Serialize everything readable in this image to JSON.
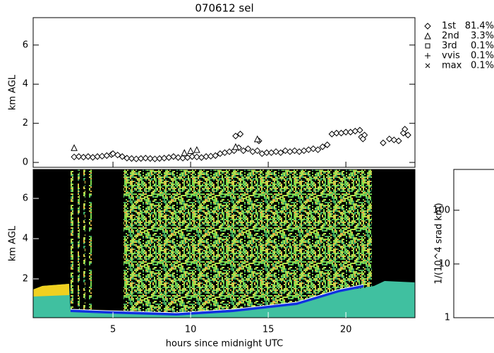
{
  "chart_data": [
    {
      "type": "scatter",
      "title": "070612 sel",
      "ylabel": "km AGL",
      "xlim": [
        -0.14,
        24.45
      ],
      "ylim": [
        -0.25,
        7.4
      ],
      "yticks": [
        0,
        2,
        4,
        6
      ],
      "series": [
        {
          "name": "1st",
          "share": "81.4%",
          "symbol": "diamond",
          "color": "#000000",
          "x": [
            2.5,
            2.8,
            3.1,
            3.4,
            3.7,
            4.0,
            4.3,
            4.6,
            4.9,
            5.0,
            5.3,
            5.6,
            5.9,
            6.2,
            6.5,
            6.8,
            7.1,
            7.4,
            7.7,
            8.0,
            8.3,
            8.6,
            8.9,
            9.2,
            9.5,
            9.8,
            10.1,
            10.4,
            10.7,
            11.0,
            11.3,
            11.6,
            11.9,
            12.2,
            12.5,
            12.8,
            13.1,
            13.4,
            13.7,
            14.0,
            14.3,
            14.6,
            14.9,
            15.2,
            15.5,
            15.8,
            16.1,
            16.4,
            16.7,
            17.0,
            17.3,
            17.6,
            17.9,
            18.2,
            18.5,
            18.8,
            19.1,
            19.4,
            19.7,
            20.0,
            20.3,
            20.6,
            20.9,
            21.0,
            21.2,
            22.4,
            22.8,
            23.1,
            23.4,
            23.7,
            24.0,
            12.9,
            13.2,
            14.4,
            21.1,
            23.8
          ],
          "values": [
            0.28,
            0.3,
            0.27,
            0.3,
            0.26,
            0.3,
            0.32,
            0.35,
            0.4,
            0.45,
            0.38,
            0.3,
            0.22,
            0.2,
            0.18,
            0.2,
            0.22,
            0.2,
            0.18,
            0.2,
            0.22,
            0.25,
            0.3,
            0.25,
            0.22,
            0.25,
            0.3,
            0.28,
            0.25,
            0.3,
            0.32,
            0.35,
            0.45,
            0.5,
            0.55,
            0.6,
            0.75,
            0.6,
            0.7,
            0.55,
            0.6,
            0.45,
            0.5,
            0.5,
            0.55,
            0.5,
            0.6,
            0.55,
            0.6,
            0.55,
            0.6,
            0.65,
            0.7,
            0.65,
            0.8,
            0.9,
            1.45,
            1.5,
            1.5,
            1.55,
            1.55,
            1.6,
            1.65,
            1.3,
            1.4,
            1.0,
            1.2,
            1.15,
            1.1,
            1.5,
            1.4,
            1.35,
            1.45,
            1.1,
            1.2,
            1.7
          ]
        },
        {
          "name": "2nd",
          "share": "3.3%",
          "symbol": "triangle",
          "color": "#000000",
          "x": [
            2.5,
            9.6,
            10.0,
            10.4,
            12.9,
            14.3
          ],
          "values": [
            0.75,
            0.5,
            0.6,
            0.65,
            0.8,
            1.2
          ]
        },
        {
          "name": "3rd",
          "share": "0.1%",
          "symbol": "square",
          "color": "#000000",
          "x": [],
          "values": []
        },
        {
          "name": "vvis",
          "share": "0.1%",
          "symbol": "plus",
          "color": "#000000",
          "x": [],
          "values": []
        },
        {
          "name": "max",
          "share": "0.1%",
          "symbol": "cross",
          "color": "#000000",
          "x": [],
          "values": []
        }
      ]
    },
    {
      "type": "heatmap",
      "xlabel": "hours since midnight UTC",
      "ylabel": "km AGL",
      "xlim": [
        -0.14,
        24.45
      ],
      "ylim": [
        0.07,
        7.44
      ],
      "xticks": [
        5,
        10,
        15,
        20
      ],
      "yticks": [
        2,
        4,
        6
      ]
    },
    {
      "type": "colorbar",
      "label": "1/(10^4 srad km)",
      "log": true,
      "ylim": [
        1,
        575
      ],
      "yticks": [
        1,
        10,
        100
      ]
    }
  ]
}
